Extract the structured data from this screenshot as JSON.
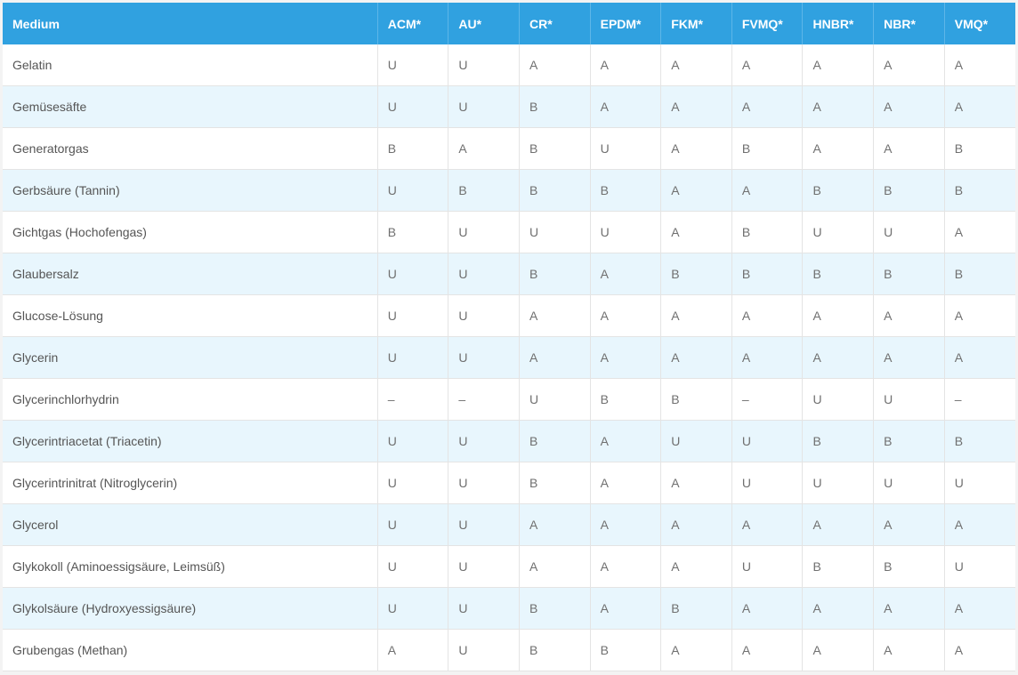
{
  "table": {
    "headers": [
      "Medium",
      "ACM*",
      "AU*",
      "CR*",
      "EPDM*",
      "FKM*",
      "FVMQ*",
      "HNBR*",
      "NBR*",
      "VMQ*"
    ],
    "rows": [
      [
        "Gelatin",
        "U",
        "U",
        "A",
        "A",
        "A",
        "A",
        "A",
        "A",
        "A"
      ],
      [
        "Gemüsesäfte",
        "U",
        "U",
        "B",
        "A",
        "A",
        "A",
        "A",
        "A",
        "A"
      ],
      [
        "Generatorgas",
        "B",
        "A",
        "B",
        "U",
        "A",
        "B",
        "A",
        "A",
        "B"
      ],
      [
        "Gerbsäure (Tannin)",
        "U",
        "B",
        "B",
        "B",
        "A",
        "A",
        "B",
        "B",
        "B"
      ],
      [
        "Gichtgas (Hochofengas)",
        "B",
        "U",
        "U",
        "U",
        "A",
        "B",
        "U",
        "U",
        "A"
      ],
      [
        "Glaubersalz",
        "U",
        "U",
        "B",
        "A",
        "B",
        "B",
        "B",
        "B",
        "B"
      ],
      [
        "Glucose-Lösung",
        "U",
        "U",
        "A",
        "A",
        "A",
        "A",
        "A",
        "A",
        "A"
      ],
      [
        "Glycerin",
        "U",
        "U",
        "A",
        "A",
        "A",
        "A",
        "A",
        "A",
        "A"
      ],
      [
        "Glycerinchlorhydrin",
        "–",
        "–",
        "U",
        "B",
        "B",
        "–",
        "U",
        "U",
        "–"
      ],
      [
        "Glycerintriacetat (Triacetin)",
        "U",
        "U",
        "B",
        "A",
        "U",
        "U",
        "B",
        "B",
        "B"
      ],
      [
        "Glycerintrinitrat (Nitroglycerin)",
        "U",
        "U",
        "B",
        "A",
        "A",
        "U",
        "U",
        "U",
        "U"
      ],
      [
        "Glycerol",
        "U",
        "U",
        "A",
        "A",
        "A",
        "A",
        "A",
        "A",
        "A"
      ],
      [
        "Glykokoll (Aminoessigsäure, Leimsüß)",
        "U",
        "U",
        "A",
        "A",
        "A",
        "U",
        "B",
        "B",
        "U"
      ],
      [
        "Glykolsäure (Hydroxyessigsäure)",
        "U",
        "U",
        "B",
        "A",
        "B",
        "A",
        "A",
        "A",
        "A"
      ],
      [
        "Grubengas (Methan)",
        "A",
        "U",
        "B",
        "B",
        "A",
        "A",
        "A",
        "A",
        "A"
      ]
    ]
  }
}
